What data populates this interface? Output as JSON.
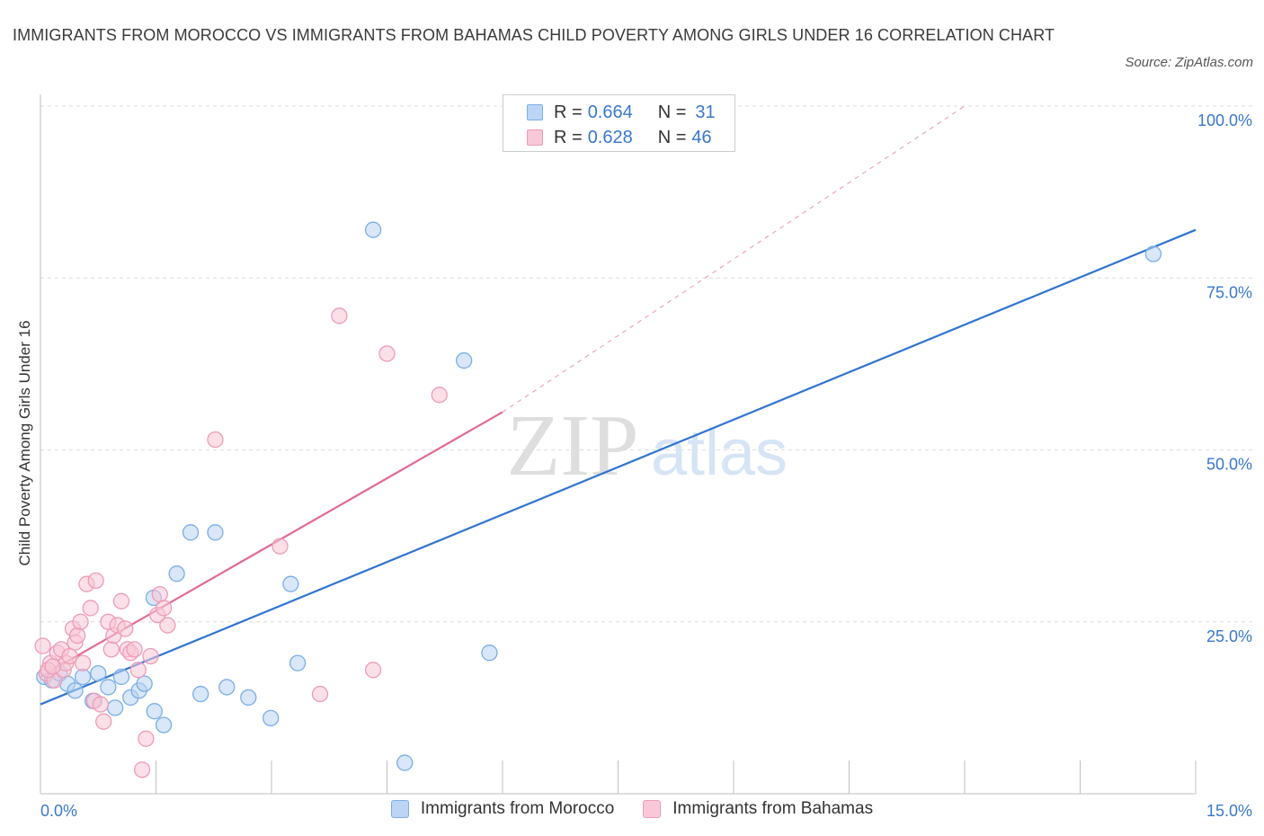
{
  "chart_data": {
    "type": "scatter",
    "title": "IMMIGRANTS FROM MOROCCO VS IMMIGRANTS FROM BAHAMAS CHILD POVERTY AMONG GIRLS UNDER 16 CORRELATION CHART",
    "source": "Source: ZipAtlas.com",
    "ylabel": "Child Poverty Among Girls Under 16",
    "xlim": [
      0,
      15
    ],
    "ylim": [
      0,
      100
    ],
    "x_tick_labels": [
      "0.0%",
      "15.0%"
    ],
    "y_ticks": [
      25,
      50,
      75,
      100
    ],
    "y_tick_labels": [
      "25.0%",
      "50.0%",
      "75.0%",
      "100.0%"
    ],
    "watermark": {
      "zip": "ZIP",
      "atlas": "atlas"
    },
    "legend": [
      {
        "r_label": "R = ",
        "r_value": "0.664",
        "n_label": "N = ",
        "n_value": "31"
      },
      {
        "r_label": "R = ",
        "r_value": "0.628",
        "n_label": "N = ",
        "n_value": "46"
      }
    ],
    "series": [
      {
        "name": "Immigrants from Morocco",
        "color": "#7aaee6",
        "fill": "#b9d3f3",
        "line_color": "#2f74d0",
        "trend": {
          "x0": 0,
          "y0": 13.0,
          "x1": 15,
          "y1": 82.0
        },
        "points": [
          [
            0.05,
            17.0
          ],
          [
            0.15,
            16.5
          ],
          [
            0.25,
            17.5
          ],
          [
            0.35,
            16.0
          ],
          [
            0.45,
            15.0
          ],
          [
            0.55,
            17.0
          ],
          [
            0.68,
            13.5
          ],
          [
            0.75,
            17.5
          ],
          [
            0.88,
            15.5
          ],
          [
            0.97,
            12.5
          ],
          [
            1.05,
            17.0
          ],
          [
            1.17,
            14.0
          ],
          [
            1.28,
            15.0
          ],
          [
            1.35,
            16.0
          ],
          [
            1.48,
            12.0
          ],
          [
            1.6,
            10.0
          ],
          [
            1.47,
            28.5
          ],
          [
            1.77,
            32.0
          ],
          [
            1.95,
            38.0
          ],
          [
            2.08,
            14.5
          ],
          [
            2.27,
            38.0
          ],
          [
            2.42,
            15.5
          ],
          [
            2.7,
            14.0
          ],
          [
            2.99,
            11.0
          ],
          [
            3.25,
            30.5
          ],
          [
            3.34,
            19.0
          ],
          [
            4.32,
            82.0
          ],
          [
            4.73,
            4.5
          ],
          [
            5.5,
            63.0
          ],
          [
            5.83,
            20.5
          ],
          [
            14.45,
            78.5
          ]
        ]
      },
      {
        "name": "Immigrants from Bahamas",
        "color": "#ee9bb7",
        "fill": "#f8c6d6",
        "line_color": "#e36995",
        "trend": {
          "x0": 0,
          "y0": 17.0,
          "x1": 6.0,
          "y1": 55.5
        },
        "trend_ext": {
          "x0": 6.0,
          "y0": 55.5,
          "x1": 12.0,
          "y1": 100.0
        },
        "points": [
          [
            0.03,
            21.5
          ],
          [
            0.08,
            17.5
          ],
          [
            0.13,
            19.0
          ],
          [
            0.18,
            16.5
          ],
          [
            0.22,
            20.5
          ],
          [
            0.27,
            21.0
          ],
          [
            0.3,
            18.0
          ],
          [
            0.33,
            19.0
          ],
          [
            0.38,
            20.0
          ],
          [
            0.42,
            24.0
          ],
          [
            0.45,
            22.0
          ],
          [
            0.48,
            23.0
          ],
          [
            0.52,
            25.0
          ],
          [
            0.55,
            19.0
          ],
          [
            0.6,
            30.5
          ],
          [
            0.65,
            27.0
          ],
          [
            0.7,
            13.5
          ],
          [
            0.72,
            31.0
          ],
          [
            0.78,
            13.0
          ],
          [
            0.82,
            10.5
          ],
          [
            0.88,
            25.0
          ],
          [
            0.92,
            21.0
          ],
          [
            0.95,
            23.0
          ],
          [
            1.0,
            24.5
          ],
          [
            1.05,
            28.0
          ],
          [
            1.1,
            24.0
          ],
          [
            1.13,
            21.0
          ],
          [
            1.17,
            20.5
          ],
          [
            1.22,
            21.0
          ],
          [
            1.27,
            18.0
          ],
          [
            1.32,
            3.5
          ],
          [
            1.37,
            8.0
          ],
          [
            1.43,
            20.0
          ],
          [
            1.52,
            26.0
          ],
          [
            1.55,
            29.0
          ],
          [
            1.6,
            27.0
          ],
          [
            1.65,
            24.5
          ],
          [
            2.27,
            51.5
          ],
          [
            3.11,
            36.0
          ],
          [
            3.63,
            14.5
          ],
          [
            3.88,
            69.5
          ],
          [
            4.32,
            18.0
          ],
          [
            4.5,
            64.0
          ],
          [
            5.18,
            58.0
          ],
          [
            0.1,
            18.0
          ],
          [
            0.16,
            18.5
          ]
        ]
      }
    ]
  }
}
